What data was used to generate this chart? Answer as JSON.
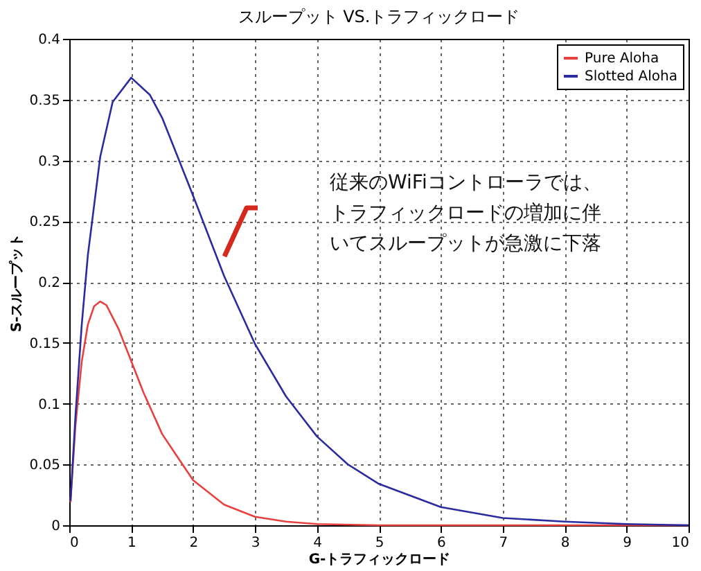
{
  "chart_data": {
    "type": "line",
    "title": "スループット VS.トラフィックロード",
    "xlabel": "G-トラフィックロード",
    "ylabel": "S-スループット",
    "xlim": [
      0,
      10
    ],
    "xticks": [
      0,
      1,
      2,
      3,
      4,
      5,
      6,
      7,
      8,
      9,
      10
    ],
    "ylim": [
      0,
      0.4
    ],
    "yticks": [
      0,
      0.05,
      0.1,
      0.15,
      0.2,
      0.25,
      0.3,
      0.35,
      0.4
    ],
    "grid": true,
    "legend": "top right",
    "line_style": "solid",
    "series": [
      {
        "name": "Pure Aloha",
        "color": "#e8403f",
        "x": [
          0.02,
          0.1,
          0.2,
          0.3,
          0.4,
          0.5,
          0.6,
          0.8,
          1,
          1.2,
          1.5,
          2,
          2.5,
          3,
          3.5,
          4,
          5,
          6,
          8,
          10
        ],
        "values": [
          0.019,
          0.082,
          0.134,
          0.165,
          0.18,
          0.184,
          0.181,
          0.161,
          0.135,
          0.109,
          0.075,
          0.037,
          0.017,
          0.007,
          0.003,
          0.001,
          0,
          0,
          0,
          0
        ]
      },
      {
        "name": "Slotted Aloha",
        "color": "#2b2ba0",
        "x": [
          0.02,
          0.1,
          0.2,
          0.3,
          0.5,
          0.7,
          1,
          1.3,
          1.5,
          2,
          2.5,
          3,
          3.5,
          4,
          4.5,
          5,
          6,
          7,
          8,
          9,
          10
        ],
        "values": [
          0.02,
          0.09,
          0.164,
          0.222,
          0.303,
          0.348,
          0.368,
          0.354,
          0.335,
          0.271,
          0.205,
          0.149,
          0.106,
          0.073,
          0.05,
          0.034,
          0.015,
          0.006,
          0.003,
          0.001,
          0
        ]
      }
    ],
    "annotations": [
      "従来のWiFiコントローラでは、トラフィックロードの増加に伴いてスループットが急激に下落"
    ]
  }
}
